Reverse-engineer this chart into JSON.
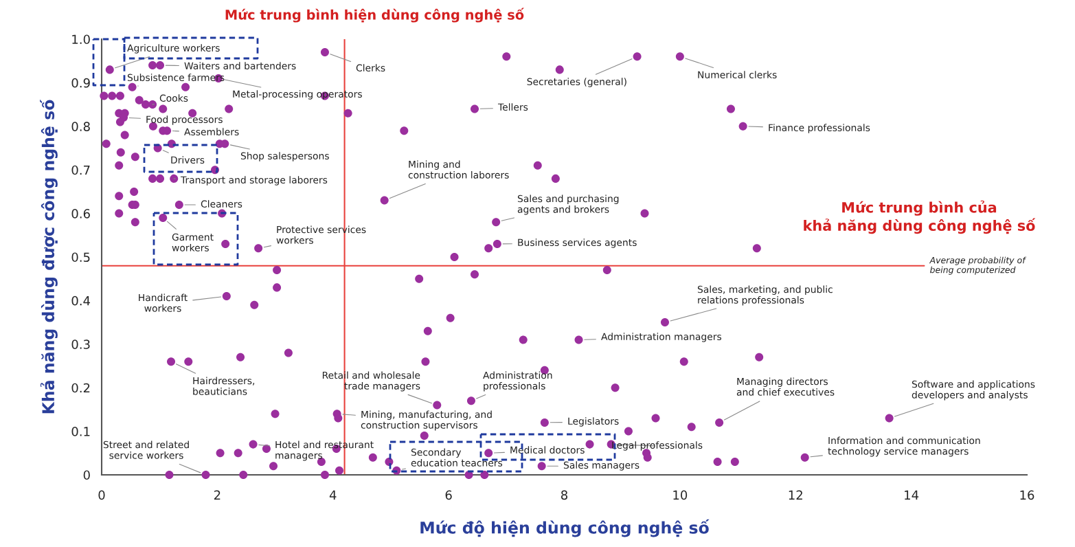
{
  "chart_data": {
    "type": "scatter",
    "xlabel": "Mức độ hiện dùng công nghệ số",
    "ylabel": "Khả năng dùng được công nghệ số",
    "xlim": [
      0,
      16
    ],
    "xticks": [
      0,
      2,
      4,
      6,
      8,
      10,
      12,
      14,
      16
    ],
    "ylim": [
      0,
      1.0
    ],
    "yticks": [
      0,
      0.1,
      0.2,
      0.3,
      0.4,
      0.5,
      0.6,
      0.7,
      0.8,
      0.9,
      {
        "value": 1.0,
        "label": "1.0"
      }
    ],
    "grid": false,
    "marker": "circle",
    "series": [
      {
        "color": "#9b2f9e",
        "x": [
          0.14,
          0.88,
          1.01,
          3.86,
          2.02,
          0.53,
          1.45,
          0.04,
          0.18,
          0.32,
          0.65,
          0.76,
          0.88,
          1.06,
          2.2,
          3.86,
          4.26,
          0.3,
          0.4,
          0.32,
          0.38,
          1.57,
          0.4,
          0.89,
          1.06,
          1.13,
          0.08,
          0.33,
          0.58,
          0.3,
          0.97,
          1.21,
          2.04,
          2.13,
          1.96,
          0.88,
          1.01,
          1.25,
          0.56,
          0.3,
          0.53,
          0.58,
          0.3,
          0.58,
          1.34,
          1.06,
          2.08,
          2.14,
          2.71,
          3.03,
          4.89,
          5.23,
          3.03,
          2.16,
          2.64,
          1.2,
          1.5,
          2.4,
          3.23,
          3.0,
          4.07,
          4.09,
          2.62,
          2.05,
          2.36,
          2.85,
          2.97,
          3.8,
          4.06,
          4.11,
          3.86,
          1.17,
          1.8,
          2.45,
          4.69,
          4.97,
          5.1,
          7.0,
          7.92,
          9.26,
          10.0,
          6.45,
          7.54,
          7.85,
          6.82,
          9.39,
          6.69,
          6.84,
          6.1,
          8.74,
          5.49,
          6.45,
          6.03,
          5.64,
          7.29,
          8.25,
          9.74,
          10.07,
          5.6,
          7.66,
          8.88,
          5.8,
          6.39,
          7.66,
          9.58,
          9.11,
          5.58,
          6.69,
          8.44,
          8.81,
          9.42,
          9.44,
          6.35,
          6.62,
          7.61,
          10.88,
          11.09,
          11.33,
          11.37,
          10.2,
          10.68,
          13.62,
          10.65,
          10.95,
          12.16
        ],
        "values": [
          0.93,
          0.94,
          0.94,
          0.97,
          0.91,
          0.89,
          0.89,
          0.87,
          0.87,
          0.87,
          0.86,
          0.85,
          0.85,
          0.84,
          0.84,
          0.87,
          0.83,
          0.83,
          0.83,
          0.81,
          0.82,
          0.83,
          0.78,
          0.8,
          0.79,
          0.79,
          0.76,
          0.74,
          0.73,
          0.71,
          0.75,
          0.76,
          0.76,
          0.76,
          0.7,
          0.68,
          0.68,
          0.68,
          0.65,
          0.64,
          0.62,
          0.62,
          0.6,
          0.58,
          0.62,
          0.59,
          0.6,
          0.53,
          0.52,
          0.47,
          0.63,
          0.79,
          0.43,
          0.41,
          0.39,
          0.26,
          0.26,
          0.27,
          0.28,
          0.14,
          0.14,
          0.13,
          0.07,
          0.05,
          0.05,
          0.06,
          0.02,
          0.03,
          0.06,
          0.01,
          0,
          0,
          0,
          0,
          0.04,
          0.03,
          0.01,
          0.96,
          0.93,
          0.96,
          0.96,
          0.84,
          0.71,
          0.68,
          0.58,
          0.6,
          0.52,
          0.53,
          0.5,
          0.47,
          0.45,
          0.46,
          0.36,
          0.33,
          0.31,
          0.31,
          0.35,
          0.26,
          0.26,
          0.24,
          0.2,
          0.16,
          0.17,
          0.12,
          0.13,
          0.1,
          0.09,
          0.05,
          0.07,
          0.07,
          0.05,
          0.04,
          0,
          0,
          0.02,
          0.84,
          0.8,
          0.52,
          0.27,
          0.11,
          0.12,
          0.13,
          0.03,
          0.03,
          0.04
        ]
      }
    ],
    "ref_lines": [
      {
        "axis": "x",
        "value": 4.2,
        "label": "Mức trung bình hiện dùng công nghệ số",
        "color": "#e8413c"
      },
      {
        "axis": "y",
        "value": 0.48,
        "label": "Average probability of\nbeing computerized",
        "color": "#e8413c"
      }
    ],
    "annotations": [
      {
        "text": "Agriculture workers",
        "x": 0.14,
        "y": 0.93
      },
      {
        "text": "Waiters and bartenders",
        "x": 1.01,
        "y": 0.94
      },
      {
        "text": "Subsistence farmers",
        "x": 0.53,
        "y": 0.89
      },
      {
        "text": "Clerks",
        "x": 3.86,
        "y": 0.97
      },
      {
        "text": "Metal-processing operators",
        "x": 2.02,
        "y": 0.91
      },
      {
        "text": "Cooks",
        "x": 0.88,
        "y": 0.85
      },
      {
        "text": "Food processors",
        "x": 0.38,
        "y": 0.82
      },
      {
        "text": "Assemblers",
        "x": 1.13,
        "y": 0.79
      },
      {
        "text": "Shop salespersons",
        "x": 2.13,
        "y": 0.76
      },
      {
        "text": "Drivers",
        "x": 0.97,
        "y": 0.75
      },
      {
        "text": "Transport and storage laborers",
        "x": 1.25,
        "y": 0.68
      },
      {
        "text": "Cleaners",
        "x": 1.34,
        "y": 0.62
      },
      {
        "text": "Garment\nworkers",
        "x": 1.06,
        "y": 0.59
      },
      {
        "text": "Protective services\nworkers",
        "x": 2.71,
        "y": 0.52
      },
      {
        "text": "Handicraft\nworkers",
        "x": 2.16,
        "y": 0.41
      },
      {
        "text": "Hairdressers,\nbeauticians",
        "x": 1.2,
        "y": 0.26
      },
      {
        "text": "Street and related\nservice workers",
        "x": 1.8,
        "y": 0
      },
      {
        "text": "Hotel and restaurant\nmanagers",
        "x": 2.62,
        "y": 0.07
      },
      {
        "text": "Retail and wholesale\ntrade managers",
        "x": 5.8,
        "y": 0.16
      },
      {
        "text": "Mining, manufacturing, and\nconstruction supervisors",
        "x": 4.07,
        "y": 0.14
      },
      {
        "text": "Administration\nprofessionals",
        "x": 6.39,
        "y": 0.17
      },
      {
        "text": "Secondary\neducation teachers",
        "x": 5.1,
        "y": 0.01
      },
      {
        "text": "Medical doctors",
        "x": 6.69,
        "y": 0.05
      },
      {
        "text": "Legislators",
        "x": 7.66,
        "y": 0.12
      },
      {
        "text": "Legal professionals",
        "x": 8.81,
        "y": 0.07
      },
      {
        "text": "Sales managers",
        "x": 7.61,
        "y": 0.02
      },
      {
        "text": "Mining and\nconstruction laborers",
        "x": 4.89,
        "y": 0.63
      },
      {
        "text": "Tellers",
        "x": 6.45,
        "y": 0.84
      },
      {
        "text": "Secretaries (general)",
        "x": 9.26,
        "y": 0.96
      },
      {
        "text": "Numerical clerks",
        "x": 10.0,
        "y": 0.96
      },
      {
        "text": "Finance professionals",
        "x": 11.09,
        "y": 0.8
      },
      {
        "text": "Sales and purchasing\nagents and brokers",
        "x": 6.82,
        "y": 0.58
      },
      {
        "text": "Business services agents",
        "x": 6.84,
        "y": 0.53
      },
      {
        "text": "Sales, marketing, and public\nrelations professionals",
        "x": 9.74,
        "y": 0.35
      },
      {
        "text": "Administration managers",
        "x": 8.25,
        "y": 0.31
      },
      {
        "text": "Managing directors\nand chief executives",
        "x": 10.68,
        "y": 0.12
      },
      {
        "text": "Software and applications\ndevelopers and analysts",
        "x": 13.62,
        "y": 0.13
      },
      {
        "text": "Information and communication\ntechnology service managers",
        "x": 12.16,
        "y": 0.04
      },
      "Mức trung bình của\nkhả năng dùng công nghệ số"
    ]
  }
}
